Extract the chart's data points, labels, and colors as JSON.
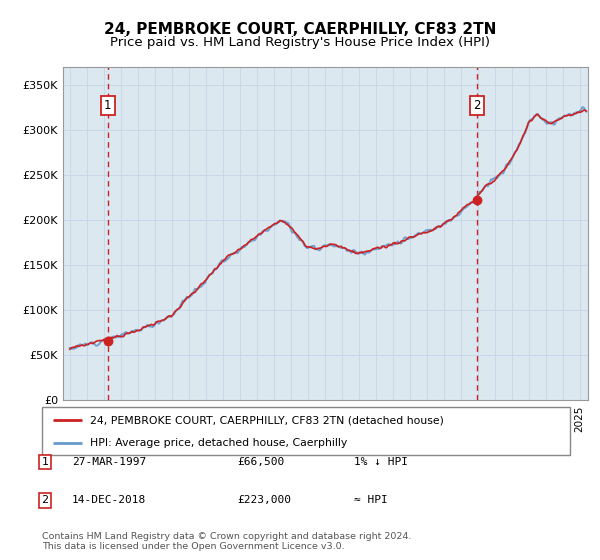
{
  "title": "24, PEMBROKE COURT, CAERPHILLY, CF83 2TN",
  "subtitle": "Price paid vs. HM Land Registry's House Price Index (HPI)",
  "ylim": [
    0,
    370000
  ],
  "yticks": [
    0,
    50000,
    100000,
    150000,
    200000,
    250000,
    300000,
    350000
  ],
  "ytick_labels": [
    "£0",
    "£50K",
    "£100K",
    "£150K",
    "£200K",
    "£250K",
    "£300K",
    "£350K"
  ],
  "sale1_x": 1997.23,
  "sale1_y": 66500,
  "sale2_x": 2018.96,
  "sale2_y": 223000,
  "legend_entry1": "24, PEMBROKE COURT, CAERPHILLY, CF83 2TN (detached house)",
  "legend_entry2": "HPI: Average price, detached house, Caerphilly",
  "footnote1": "Contains HM Land Registry data © Crown copyright and database right 2024.",
  "footnote2": "This data is licensed under the Open Government Licence v3.0.",
  "table_rows": [
    {
      "num": "1",
      "date": "27-MAR-1997",
      "price": "£66,500",
      "relation": "1% ↓ HPI"
    },
    {
      "num": "2",
      "date": "14-DEC-2018",
      "price": "£223,000",
      "relation": "≈ HPI"
    }
  ],
  "hpi_line_color": "#6699cc",
  "price_line_color": "#cc2222",
  "sale_marker_color": "#cc2222",
  "grid_color": "#c8d8e8",
  "plot_bg_color": "#dce8f0",
  "vline_color": "#cc2222",
  "title_fontsize": 11,
  "subtitle_fontsize": 9.5,
  "xlim_left": 1994.6,
  "xlim_right": 2025.5,
  "xtick_start": 1995,
  "xtick_end": 2025
}
